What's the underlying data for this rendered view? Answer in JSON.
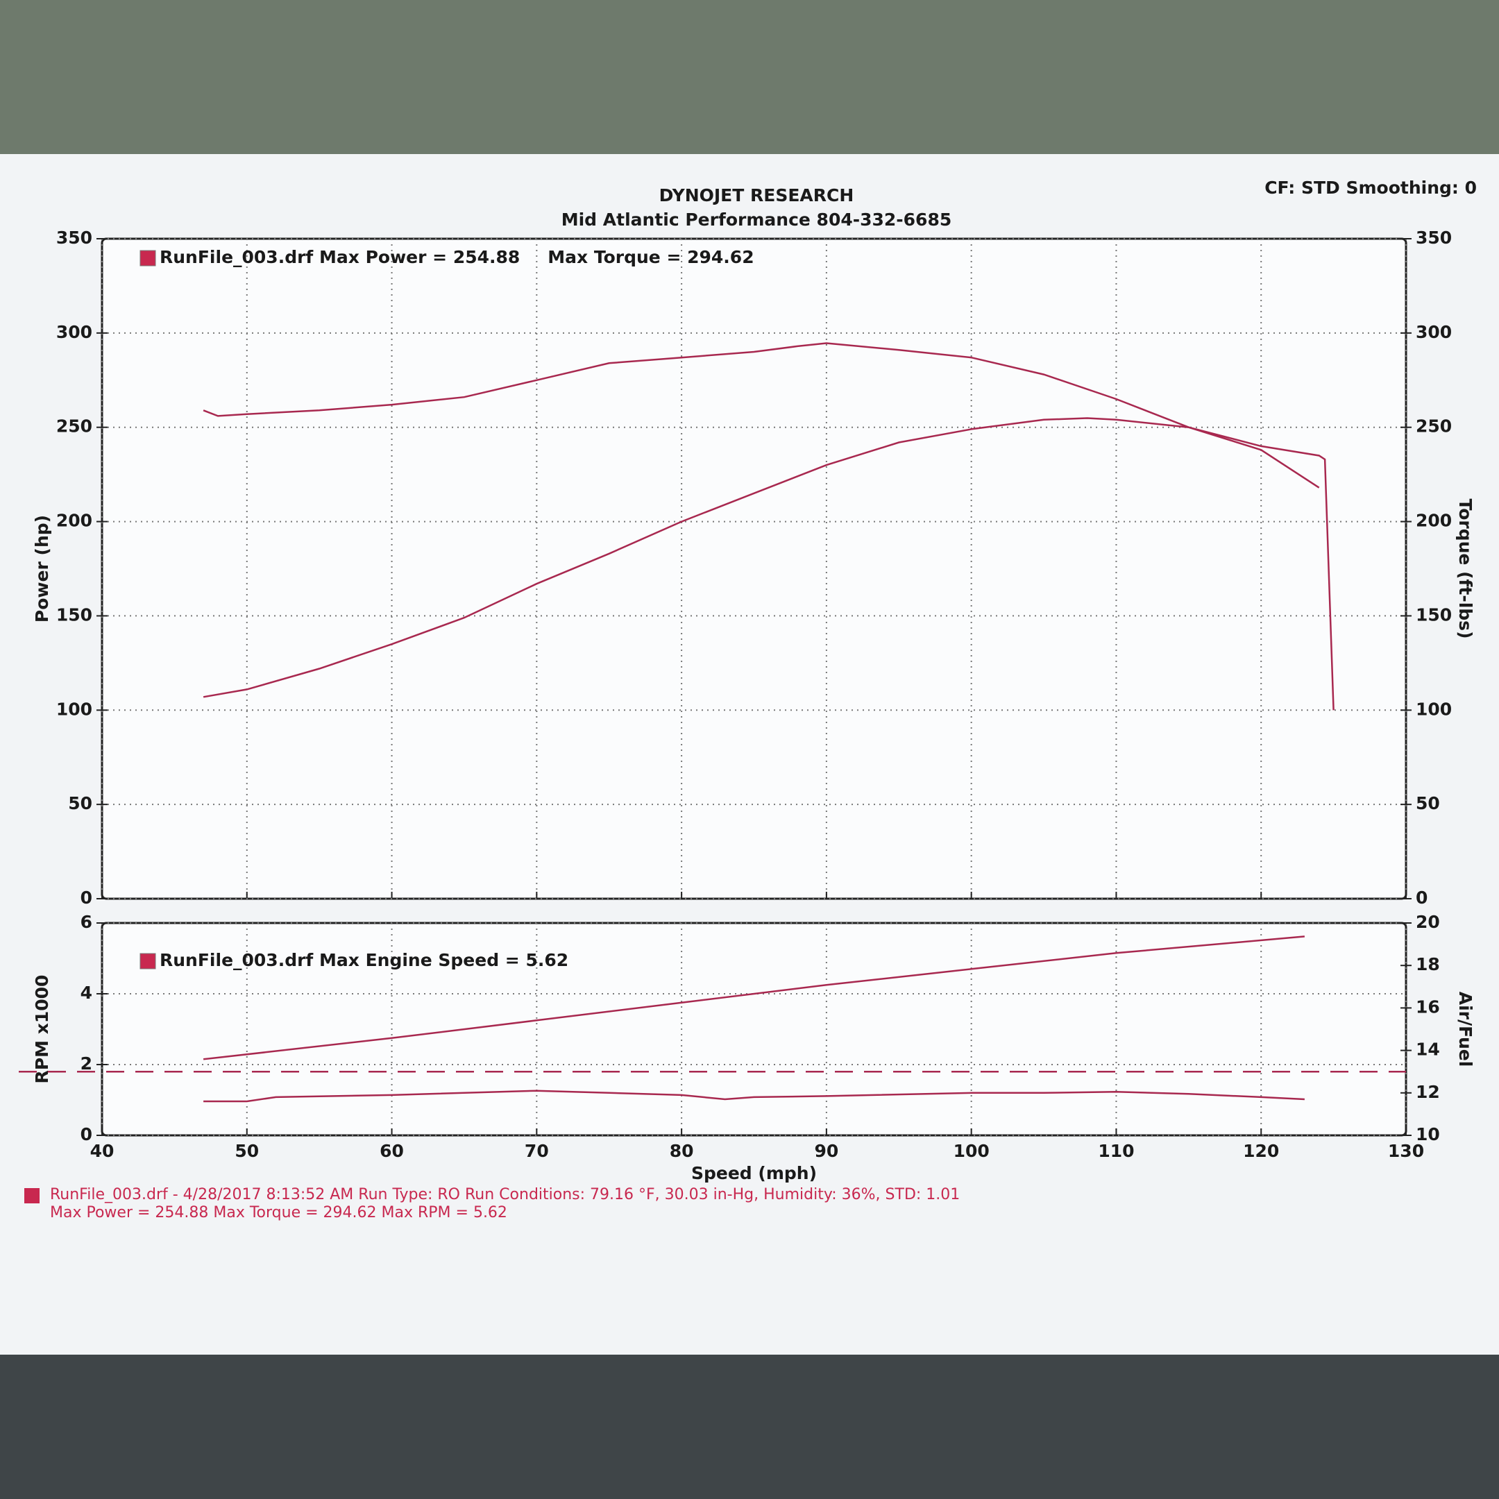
{
  "header": {
    "title": "DYNOJET RESEARCH",
    "subtitle": "Mid Atlantic Performance  804-332-6685",
    "settings": "CF: STD  Smoothing: 0"
  },
  "chart_data": [
    {
      "type": "line",
      "ylabel": "Power (hp)",
      "y2label": "Torque (ft-lbs)",
      "xlim": [
        40,
        130
      ],
      "xticks": [
        40,
        50,
        60,
        70,
        80,
        90,
        100,
        110,
        120,
        130
      ],
      "ylim": [
        0,
        350
      ],
      "yticks": [
        0,
        50,
        100,
        150,
        200,
        250,
        300,
        350
      ],
      "y2lim": [
        0,
        350
      ],
      "y2ticks": [
        0,
        50,
        100,
        150,
        200,
        250,
        300,
        350
      ],
      "grid": true,
      "series": [
        {
          "name": "RunFile_003.drf Max Power = 254.88",
          "color": "#a8284f",
          "x": [
            47,
            50,
            55,
            60,
            65,
            70,
            75,
            80,
            85,
            90,
            95,
            100,
            105,
            108,
            110,
            115,
            120,
            124,
            124.4,
            125
          ],
          "values": [
            107,
            111,
            122,
            135,
            149,
            167,
            183,
            200,
            215,
            230,
            242,
            249,
            254,
            254.88,
            254,
            250,
            240,
            235,
            233,
            100
          ]
        },
        {
          "name": "Max Torque = 294.62",
          "color": "#a8284f",
          "axis": "y2",
          "x": [
            47,
            48,
            50,
            55,
            60,
            65,
            70,
            75,
            80,
            85,
            88,
            90,
            95,
            100,
            105,
            110,
            115,
            120,
            124
          ],
          "values": [
            259,
            256,
            257,
            259,
            262,
            266,
            275,
            284,
            287,
            290,
            293,
            294.62,
            291,
            287,
            278,
            265,
            250,
            238,
            218
          ]
        }
      ]
    },
    {
      "type": "line",
      "xlabel": "Speed (mph)",
      "ylabel": "RPM x1000",
      "y2label": "Air/Fuel",
      "xlim": [
        40,
        130
      ],
      "xticks": [
        40,
        50,
        60,
        70,
        80,
        90,
        100,
        110,
        120,
        130
      ],
      "ylim": [
        0,
        6
      ],
      "yticks": [
        0,
        2,
        4,
        6
      ],
      "y2lim": [
        10,
        20
      ],
      "y2ticks": [
        10,
        12,
        14,
        16,
        18,
        20
      ],
      "grid": true,
      "ref_line": {
        "value": 13,
        "axis": "y2",
        "color": "#a8284f"
      },
      "series": [
        {
          "name": "RunFile_003.drf Max Engine Speed = 5.62",
          "color": "#a8284f",
          "x": [
            47,
            60,
            70,
            80,
            90,
            100,
            110,
            123
          ],
          "values": [
            2.15,
            2.75,
            3.25,
            3.75,
            4.25,
            4.7,
            5.15,
            5.62
          ]
        },
        {
          "color": "#a8284f",
          "axis": "y2",
          "x": [
            47,
            50,
            52,
            60,
            70,
            75,
            80,
            83,
            85,
            90,
            100,
            105,
            110,
            115,
            120,
            123
          ],
          "values": [
            11.6,
            11.6,
            11.8,
            11.9,
            12.1,
            12.0,
            11.9,
            11.7,
            11.8,
            11.85,
            12.0,
            12.0,
            12.05,
            11.95,
            11.8,
            11.7
          ]
        }
      ]
    }
  ],
  "footer": {
    "line1": "RunFile_003.drf - 4/28/2017 8:13:52 AM  Run Type: RO  Run Conditions: 79.16 °F, 30.03 in-Hg,  Humidity:  36%, STD: 1.01",
    "line2": "Max Power = 254.88  Max Torque = 294.62  Max RPM = 5.62"
  }
}
